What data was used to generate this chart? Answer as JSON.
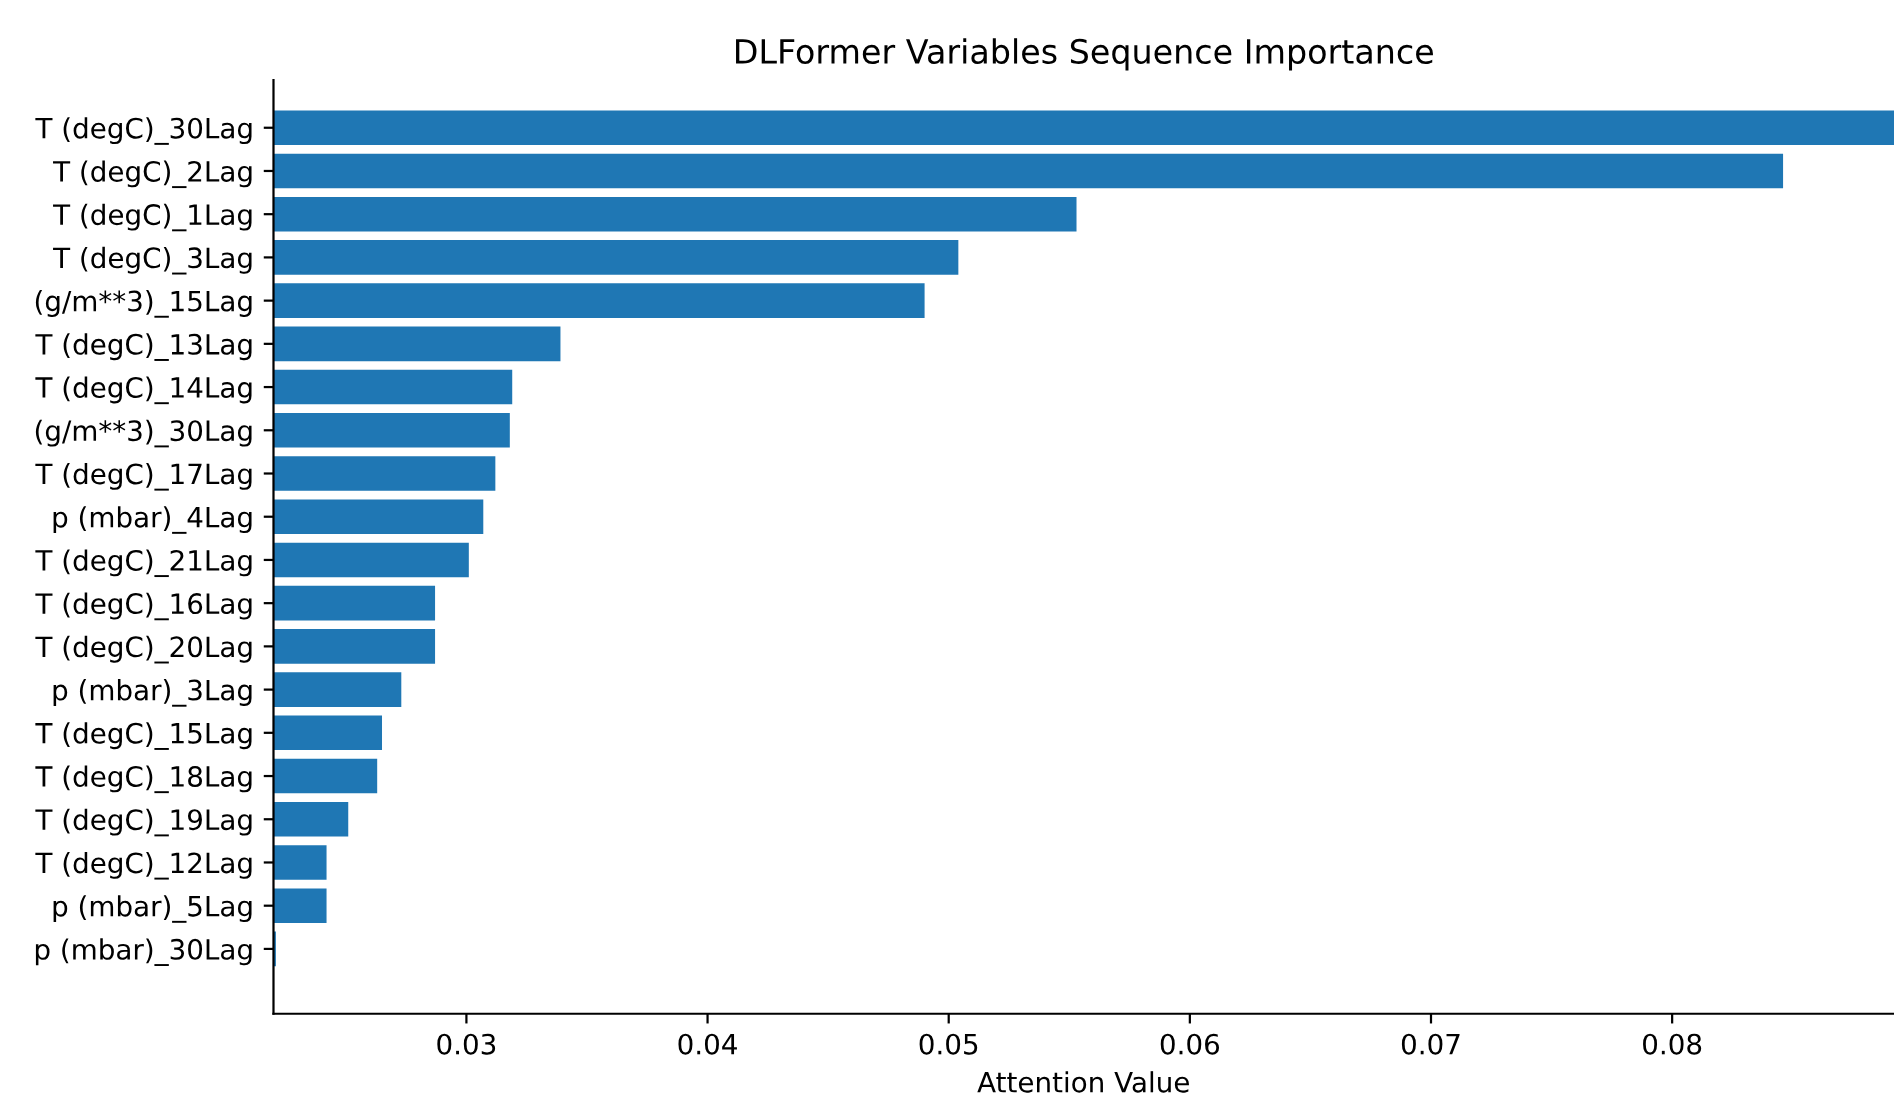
{
  "chart_data": {
    "type": "bar",
    "orientation": "horizontal",
    "title": "DLFormer Variables Sequence Importance",
    "xlabel": "Attention Value",
    "categories": [
      "T (degC)_30Lag",
      "T (degC)_2Lag",
      "T (degC)_1Lag",
      "T (degC)_3Lag",
      "(g/m**3)_15Lag",
      "T (degC)_13Lag",
      "T (degC)_14Lag",
      "(g/m**3)_30Lag",
      "T (degC)_17Lag",
      "p (mbar)_4Lag",
      "T (degC)_21Lag",
      "T (degC)_16Lag",
      "T (degC)_20Lag",
      "p (mbar)_3Lag",
      "T (degC)_15Lag",
      "T (degC)_18Lag",
      "T (degC)_19Lag",
      "T (degC)_12Lag",
      "p (mbar)_5Lag",
      "p (mbar)_30Lag"
    ],
    "values": [
      0.0892,
      0.0846,
      0.0553,
      0.0504,
      0.049,
      0.0339,
      0.0319,
      0.0318,
      0.0312,
      0.0307,
      0.0301,
      0.0287,
      0.0287,
      0.0273,
      0.0265,
      0.0263,
      0.0251,
      0.0242,
      0.0242,
      0.0221
    ],
    "color": "#1f77b4",
    "xlim": [
      0.022,
      0.0892
    ],
    "xticks": [
      0.03,
      0.04,
      0.05,
      0.06,
      0.07,
      0.08
    ],
    "grid": false
  }
}
